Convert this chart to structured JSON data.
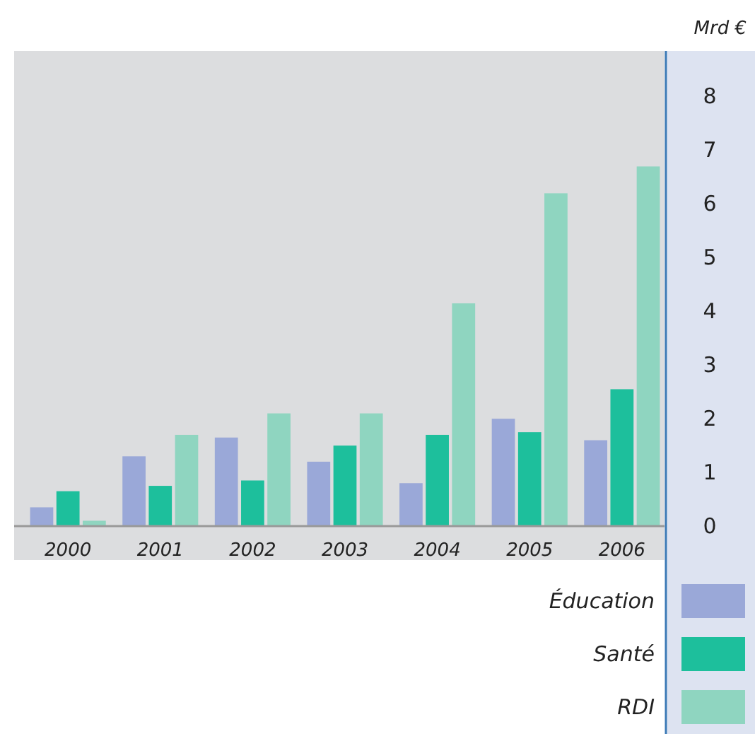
{
  "chart_data": {
    "type": "bar",
    "ylabel": "Mrd €",
    "categories": [
      "2000",
      "2001",
      "2002",
      "2003",
      "2004",
      "2005",
      "2006"
    ],
    "series": [
      {
        "name": "Éducation",
        "color": "#9aa8d8",
        "values": [
          0.35,
          1.3,
          1.65,
          1.2,
          0.8,
          2.0,
          1.6
        ]
      },
      {
        "name": "Santé",
        "color": "#1dbf9c",
        "values": [
          0.65,
          0.75,
          0.85,
          1.5,
          1.7,
          1.75,
          2.55
        ]
      },
      {
        "name": "RDI",
        "color": "#8fd5c0",
        "values": [
          0.1,
          1.7,
          2.1,
          2.1,
          4.15,
          6.2,
          6.7
        ]
      }
    ],
    "ylim": [
      0,
      8.8
    ],
    "yticks": [
      0,
      1,
      2,
      3,
      4,
      5,
      6,
      7,
      8
    ],
    "grid": false,
    "legend": "bottom right"
  }
}
